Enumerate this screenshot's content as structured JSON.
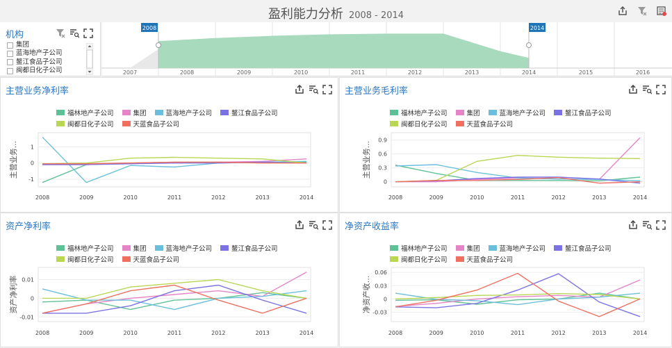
{
  "header": {
    "title": "盈利能力分析",
    "range": "2008 - 2014"
  },
  "filter": {
    "title": "机构",
    "items": [
      "集团",
      "蓝海地产子公司",
      "鳌江食品子公司",
      "闽都日化子公司"
    ]
  },
  "timeline": {
    "years": [
      "2007",
      "2008",
      "2009",
      "2010",
      "2011",
      "2012",
      "2013",
      "2014",
      "2015",
      "2016"
    ],
    "start_flag": "2008",
    "end_flag": "2014",
    "area_values": [
      0.0,
      0.72,
      0.8,
      0.86,
      0.9,
      0.92,
      0.92,
      0.45,
      0.0,
      0.0
    ]
  },
  "colors": {
    "福林地产子公司": "#5fc296",
    "集团": "#e585c8",
    "蓝海地产子公司": "#6bbfdc",
    "鳌江食品子公司": "#7b72e4",
    "闽都日化子公司": "#b9d654",
    "天蓝食品子公司": "#ee7060"
  },
  "chart_data": [
    {
      "type": "line",
      "title": "主营业务净利率",
      "ylabel": "主营业务...",
      "x": [
        "2008",
        "2009",
        "2010",
        "2011",
        "2012",
        "2013",
        "2014"
      ],
      "yticks": [
        "-1",
        "0",
        "1"
      ],
      "ylim": [
        -1.3,
        1.7
      ],
      "grid": true,
      "legend_position": "top",
      "series": [
        {
          "name": "福林地产子公司",
          "values": [
            -1.2,
            -0.1,
            0.0,
            0.05,
            0.05,
            0.05,
            0.05
          ]
        },
        {
          "name": "集团",
          "values": [
            -0.1,
            -0.05,
            0.0,
            0.0,
            0.05,
            0.1,
            0.25
          ]
        },
        {
          "name": "蓝海地产子公司",
          "values": [
            1.6,
            -1.2,
            -0.15,
            -0.25,
            0.0,
            0.05,
            0.1
          ]
        },
        {
          "name": "鳌江食品子公司",
          "values": [
            -0.1,
            -0.1,
            -0.05,
            0.0,
            0.0,
            0.05,
            0.0
          ]
        },
        {
          "name": "闽都日化子公司",
          "values": [
            -0.05,
            0.0,
            0.3,
            0.35,
            0.3,
            0.25,
            0.0
          ]
        },
        {
          "name": "天蓝食品子公司",
          "values": [
            -0.05,
            -0.05,
            0.0,
            0.05,
            0.05,
            0.0,
            0.0
          ]
        }
      ]
    },
    {
      "type": "line",
      "title": "主营业务毛利率",
      "ylabel": "主营业务...",
      "x": [
        "2008",
        "2009",
        "2010",
        "2011",
        "2012",
        "2013",
        "2014"
      ],
      "yticks": [
        "0",
        "0.3",
        "0.6",
        "0.9"
      ],
      "ylim": [
        -0.05,
        1.0
      ],
      "grid": true,
      "legend_position": "top",
      "series": [
        {
          "name": "福林地产子公司",
          "values": [
            0.36,
            0.18,
            0.03,
            0.03,
            0.03,
            0.02,
            0.1
          ]
        },
        {
          "name": "集团",
          "values": [
            0.0,
            0.0,
            0.05,
            0.08,
            0.06,
            0.05,
            0.95
          ]
        },
        {
          "name": "蓝海地产子公司",
          "values": [
            0.34,
            0.37,
            0.2,
            0.08,
            0.06,
            0.05,
            0.02
          ]
        },
        {
          "name": "鳌江食品子公司",
          "values": [
            0.0,
            0.02,
            0.07,
            0.1,
            0.1,
            0.06,
            -0.03
          ]
        },
        {
          "name": "闽都日化子公司",
          "values": [
            0.0,
            0.03,
            0.44,
            0.57,
            0.53,
            0.51,
            0.5
          ]
        },
        {
          "name": "天蓝食品子公司",
          "values": [
            0.0,
            0.03,
            0.03,
            0.05,
            0.09,
            -0.03,
            0.0
          ]
        }
      ]
    },
    {
      "type": "line",
      "title": "资产净利率",
      "ylabel": "资产净利率",
      "x": [
        "2008",
        "2009",
        "2010",
        "2011",
        "2012",
        "2013",
        "2014"
      ],
      "yticks": [
        "-0.01",
        "0",
        "0.01"
      ],
      "ylim": [
        -0.011,
        0.015
      ],
      "grid": true,
      "legend_position": "top",
      "series": [
        {
          "name": "福林地产子公司",
          "values": [
            -0.002,
            -0.001,
            -0.006,
            -0.001,
            0.0,
            0.003,
            0.0
          ]
        },
        {
          "name": "集团",
          "values": [
            -0.008,
            -0.003,
            0.0,
            0.002,
            0.004,
            0.001,
            0.014
          ]
        },
        {
          "name": "蓝海地产子公司",
          "values": [
            0.005,
            -0.001,
            -0.001,
            -0.006,
            0.0,
            0.001,
            0.004
          ]
        },
        {
          "name": "鳌江食品子公司",
          "values": [
            -0.008,
            -0.008,
            -0.004,
            0.004,
            0.007,
            -0.001,
            -0.008
          ]
        },
        {
          "name": "闽都日化子公司",
          "values": [
            0.0,
            0.0,
            0.006,
            0.008,
            0.01,
            0.004,
            0.0
          ]
        },
        {
          "name": "天蓝食品子公司",
          "values": [
            -0.008,
            -0.003,
            0.004,
            0.007,
            -0.001,
            -0.008,
            0.0
          ]
        }
      ]
    },
    {
      "type": "line",
      "title": "净资产收益率",
      "ylabel": "净资产收...",
      "x": [
        "2008",
        "2009",
        "2010",
        "2011",
        "2012",
        "2013",
        "2014"
      ],
      "yticks": [
        "-0.03",
        "0",
        "0.03",
        "0.06"
      ],
      "ylim": [
        -0.045,
        0.065
      ],
      "grid": true,
      "legend_position": "top",
      "series": [
        {
          "name": "福林地产子公司",
          "values": [
            -0.003,
            -0.002,
            -0.012,
            -0.002,
            0.0,
            0.013,
            0.0
          ]
        },
        {
          "name": "集团",
          "values": [
            -0.017,
            -0.01,
            0.0,
            0.005,
            0.008,
            0.004,
            0.043
          ]
        },
        {
          "name": "蓝海地产子公司",
          "values": [
            0.013,
            -0.001,
            -0.004,
            -0.013,
            0.0,
            0.004,
            0.013
          ]
        },
        {
          "name": "鳌江食品子公司",
          "values": [
            -0.018,
            -0.02,
            -0.01,
            0.02,
            0.057,
            -0.007,
            -0.04
          ]
        },
        {
          "name": "闽都日化子公司",
          "values": [
            0.0,
            0.003,
            0.008,
            0.009,
            0.012,
            0.01,
            0.0
          ]
        },
        {
          "name": "天蓝食品子公司",
          "values": [
            -0.018,
            -0.003,
            0.02,
            0.058,
            -0.005,
            -0.04,
            0.0
          ]
        }
      ]
    }
  ]
}
